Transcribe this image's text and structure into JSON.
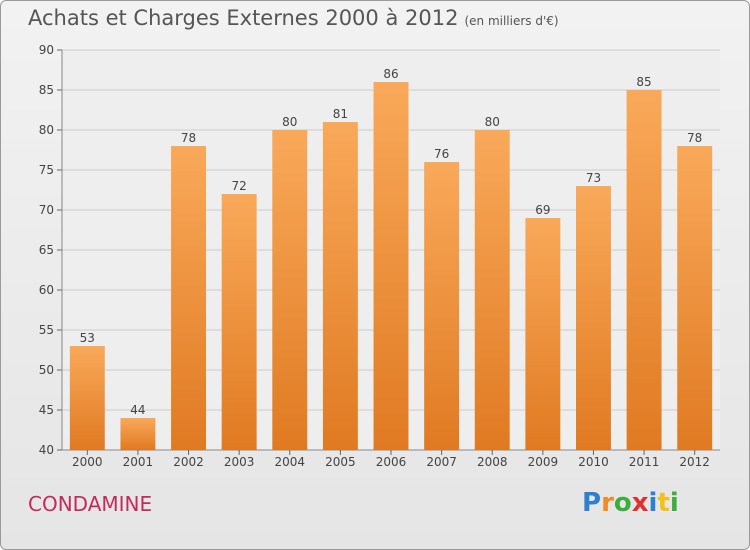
{
  "title": "Achats et Charges Externes 2000 à 2012",
  "unit_note": "(en milliers d'€)",
  "commune": "CONDAMINE",
  "logo": {
    "letters": [
      "P",
      "r",
      "o",
      "x",
      "i",
      "t",
      "i"
    ],
    "colors": [
      "#2f7fd0",
      "#f28b22",
      "#3cae3c",
      "#e2302f",
      "#2f7fd0",
      "#f2c21b",
      "#3cae3c"
    ]
  },
  "colors": {
    "bar_top": "#f9a95a",
    "bar_bottom": "#e07a22",
    "title": "#555555",
    "commune": "#c52a5e",
    "grid": "#cccccc"
  },
  "chart_data": {
    "type": "bar",
    "categories": [
      "2000",
      "2001",
      "2002",
      "2003",
      "2004",
      "2005",
      "2006",
      "2007",
      "2008",
      "2009",
      "2010",
      "2011",
      "2012"
    ],
    "values": [
      53,
      44,
      78,
      72,
      80,
      81,
      86,
      76,
      80,
      69,
      73,
      85,
      78
    ],
    "ylim": [
      40,
      90
    ],
    "yticks": [
      40,
      45,
      50,
      55,
      60,
      65,
      70,
      75,
      80,
      85,
      90
    ],
    "grid": true,
    "data_labels": true
  }
}
